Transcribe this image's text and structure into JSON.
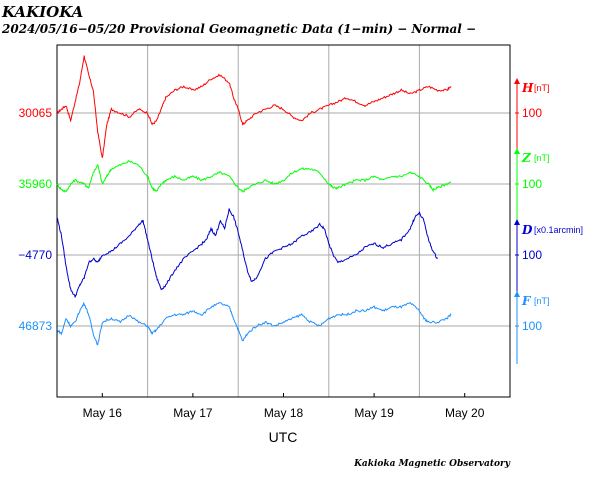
{
  "station": "KAKIOKA",
  "subtitle": "2024/05/16−05/20  Provisional Geomagnetic Data (1−min)  − Normal −",
  "credit": "Kakioka Magnetic Observatory",
  "chart_data": {
    "type": "line",
    "title": "KAKIOKA",
    "xlabel": "UTC",
    "x_ticks": [
      "May 16",
      "May 17",
      "May 18",
      "May 19",
      "May 20"
    ],
    "x_range_days": [
      0,
      5
    ],
    "grid": true,
    "series": [
      {
        "name": "H",
        "unit": "[nT]",
        "baseline": "30065",
        "scale": "100",
        "color": "#ff0000",
        "points": [
          [
            0,
            0
          ],
          [
            0.05,
            0.1
          ],
          [
            0.1,
            0.2
          ],
          [
            0.15,
            -0.2
          ],
          [
            0.2,
            0.3
          ],
          [
            0.25,
            0.8
          ],
          [
            0.3,
            1.5
          ],
          [
            0.35,
            1.0
          ],
          [
            0.4,
            0.6
          ],
          [
            0.45,
            -0.5
          ],
          [
            0.5,
            -1.2
          ],
          [
            0.55,
            -0.3
          ],
          [
            0.6,
            0.1
          ],
          [
            0.7,
            0.0
          ],
          [
            0.8,
            -0.1
          ],
          [
            0.9,
            0.1
          ],
          [
            1.0,
            0.0
          ],
          [
            1.05,
            -0.3
          ],
          [
            1.1,
            -0.2
          ],
          [
            1.15,
            0.1
          ],
          [
            1.2,
            0.4
          ],
          [
            1.3,
            0.6
          ],
          [
            1.4,
            0.7
          ],
          [
            1.5,
            0.6
          ],
          [
            1.6,
            0.7
          ],
          [
            1.7,
            0.9
          ],
          [
            1.8,
            1.0
          ],
          [
            1.9,
            0.8
          ],
          [
            1.95,
            0.4
          ],
          [
            2.0,
            0.1
          ],
          [
            2.05,
            -0.3
          ],
          [
            2.1,
            -0.2
          ],
          [
            2.2,
            0.0
          ],
          [
            2.3,
            0.1
          ],
          [
            2.4,
            0.2
          ],
          [
            2.5,
            0.1
          ],
          [
            2.6,
            -0.1
          ],
          [
            2.7,
            -0.2
          ],
          [
            2.8,
            0.0
          ],
          [
            2.9,
            0.1
          ],
          [
            3.0,
            0.2
          ],
          [
            3.1,
            0.3
          ],
          [
            3.2,
            0.4
          ],
          [
            3.3,
            0.3
          ],
          [
            3.4,
            0.2
          ],
          [
            3.5,
            0.3
          ],
          [
            3.6,
            0.4
          ],
          [
            3.7,
            0.5
          ],
          [
            3.8,
            0.6
          ],
          [
            3.9,
            0.5
          ],
          [
            4.0,
            0.6
          ],
          [
            4.1,
            0.7
          ],
          [
            4.2,
            0.6
          ],
          [
            4.3,
            0.6
          ],
          [
            4.35,
            0.7
          ]
        ]
      },
      {
        "name": "Z",
        "unit": "[nT]",
        "baseline": "35960",
        "scale": "100",
        "color": "#00ff00",
        "points": [
          [
            0,
            0
          ],
          [
            0.05,
            -0.15
          ],
          [
            0.1,
            -0.2
          ],
          [
            0.15,
            0.0
          ],
          [
            0.2,
            0.1
          ],
          [
            0.3,
            0.0
          ],
          [
            0.35,
            -0.1
          ],
          [
            0.4,
            0.3
          ],
          [
            0.45,
            0.5
          ],
          [
            0.5,
            0.0
          ],
          [
            0.55,
            0.2
          ],
          [
            0.6,
            0.4
          ],
          [
            0.7,
            0.5
          ],
          [
            0.8,
            0.6
          ],
          [
            0.9,
            0.5
          ],
          [
            1.0,
            0.2
          ],
          [
            1.05,
            -0.1
          ],
          [
            1.1,
            -0.2
          ],
          [
            1.15,
            0.0
          ],
          [
            1.2,
            0.1
          ],
          [
            1.3,
            0.2
          ],
          [
            1.4,
            0.1
          ],
          [
            1.5,
            0.2
          ],
          [
            1.6,
            0.1
          ],
          [
            1.7,
            0.2
          ],
          [
            1.8,
            0.3
          ],
          [
            1.9,
            0.2
          ],
          [
            2.0,
            -0.1
          ],
          [
            2.05,
            -0.2
          ],
          [
            2.1,
            -0.1
          ],
          [
            2.2,
            0.0
          ],
          [
            2.3,
            0.1
          ],
          [
            2.4,
            0.0
          ],
          [
            2.5,
            0.1
          ],
          [
            2.6,
            0.3
          ],
          [
            2.7,
            0.4
          ],
          [
            2.8,
            0.4
          ],
          [
            2.9,
            0.3
          ],
          [
            3.0,
            0.0
          ],
          [
            3.05,
            -0.1
          ],
          [
            3.1,
            -0.1
          ],
          [
            3.2,
            0.0
          ],
          [
            3.3,
            0.1
          ],
          [
            3.4,
            0.1
          ],
          [
            3.5,
            0.2
          ],
          [
            3.6,
            0.1
          ],
          [
            3.7,
            0.2
          ],
          [
            3.8,
            0.2
          ],
          [
            3.9,
            0.3
          ],
          [
            4.0,
            0.2
          ],
          [
            4.1,
            0.0
          ],
          [
            4.15,
            -0.15
          ],
          [
            4.2,
            -0.1
          ],
          [
            4.3,
            0.0
          ],
          [
            4.35,
            0.05
          ]
        ]
      },
      {
        "name": "D",
        "unit": "[x0.1arcmin]",
        "baseline": "−4770",
        "scale": "100",
        "color": "#0000cc",
        "points": [
          [
            0,
            1.0
          ],
          [
            0.05,
            0.5
          ],
          [
            0.1,
            -0.3
          ],
          [
            0.15,
            -0.9
          ],
          [
            0.2,
            -1.1
          ],
          [
            0.25,
            -0.8
          ],
          [
            0.3,
            -0.6
          ],
          [
            0.35,
            -0.2
          ],
          [
            0.4,
            -0.1
          ],
          [
            0.45,
            -0.2
          ],
          [
            0.5,
            0.0
          ],
          [
            0.6,
            0.1
          ],
          [
            0.7,
            0.3
          ],
          [
            0.8,
            0.5
          ],
          [
            0.9,
            0.8
          ],
          [
            0.95,
            0.9
          ],
          [
            1.0,
            0.4
          ],
          [
            1.05,
            -0.1
          ],
          [
            1.1,
            -0.6
          ],
          [
            1.15,
            -0.9
          ],
          [
            1.2,
            -0.8
          ],
          [
            1.3,
            -0.4
          ],
          [
            1.4,
            -0.1
          ],
          [
            1.5,
            0.1
          ],
          [
            1.6,
            0.3
          ],
          [
            1.65,
            0.4
          ],
          [
            1.7,
            0.7
          ],
          [
            1.75,
            0.5
          ],
          [
            1.8,
            0.9
          ],
          [
            1.85,
            0.7
          ],
          [
            1.9,
            1.2
          ],
          [
            1.95,
            1.0
          ],
          [
            2.0,
            0.6
          ],
          [
            2.05,
            0.1
          ],
          [
            2.1,
            -0.4
          ],
          [
            2.15,
            -0.7
          ],
          [
            2.2,
            -0.6
          ],
          [
            2.3,
            -0.1
          ],
          [
            2.4,
            0.1
          ],
          [
            2.5,
            0.2
          ],
          [
            2.6,
            0.3
          ],
          [
            2.7,
            0.5
          ],
          [
            2.8,
            0.6
          ],
          [
            2.9,
            0.8
          ],
          [
            2.95,
            0.7
          ],
          [
            3.0,
            0.3
          ],
          [
            3.05,
            0.0
          ],
          [
            3.1,
            -0.2
          ],
          [
            3.2,
            -0.1
          ],
          [
            3.3,
            0.0
          ],
          [
            3.4,
            0.2
          ],
          [
            3.5,
            0.3
          ],
          [
            3.6,
            0.2
          ],
          [
            3.7,
            0.3
          ],
          [
            3.8,
            0.4
          ],
          [
            3.9,
            0.7
          ],
          [
            3.95,
            1.0
          ],
          [
            4.0,
            1.1
          ],
          [
            4.05,
            0.9
          ],
          [
            4.1,
            0.4
          ],
          [
            4.15,
            0.1
          ],
          [
            4.2,
            -0.1
          ]
        ]
      },
      {
        "name": "F",
        "unit": "[nT]",
        "baseline": "46873",
        "scale": "100",
        "color": "#1e90ff",
        "points": [
          [
            0,
            -0.1
          ],
          [
            0.05,
            -0.2
          ],
          [
            0.1,
            0.2
          ],
          [
            0.15,
            0.0
          ],
          [
            0.2,
            0.1
          ],
          [
            0.25,
            0.4
          ],
          [
            0.3,
            0.6
          ],
          [
            0.35,
            0.3
          ],
          [
            0.4,
            -0.2
          ],
          [
            0.45,
            -0.5
          ],
          [
            0.5,
            0.1
          ],
          [
            0.6,
            0.2
          ],
          [
            0.7,
            0.1
          ],
          [
            0.8,
            0.3
          ],
          [
            0.9,
            0.1
          ],
          [
            1.0,
            0.0
          ],
          [
            1.05,
            -0.2
          ],
          [
            1.1,
            -0.1
          ],
          [
            1.2,
            0.2
          ],
          [
            1.3,
            0.3
          ],
          [
            1.4,
            0.3
          ],
          [
            1.5,
            0.4
          ],
          [
            1.6,
            0.3
          ],
          [
            1.7,
            0.5
          ],
          [
            1.8,
            0.6
          ],
          [
            1.9,
            0.5
          ],
          [
            1.95,
            0.2
          ],
          [
            2.0,
            -0.1
          ],
          [
            2.05,
            -0.4
          ],
          [
            2.1,
            -0.2
          ],
          [
            2.2,
            0.0
          ],
          [
            2.3,
            0.1
          ],
          [
            2.4,
            0.0
          ],
          [
            2.5,
            0.1
          ],
          [
            2.6,
            0.2
          ],
          [
            2.7,
            0.3
          ],
          [
            2.8,
            0.1
          ],
          [
            2.9,
            0.0
          ],
          [
            3.0,
            0.2
          ],
          [
            3.1,
            0.3
          ],
          [
            3.2,
            0.3
          ],
          [
            3.3,
            0.4
          ],
          [
            3.4,
            0.4
          ],
          [
            3.5,
            0.5
          ],
          [
            3.6,
            0.4
          ],
          [
            3.7,
            0.5
          ],
          [
            3.8,
            0.5
          ],
          [
            3.9,
            0.6
          ],
          [
            4.0,
            0.4
          ],
          [
            4.05,
            0.2
          ],
          [
            4.1,
            0.1
          ],
          [
            4.2,
            0.1
          ],
          [
            4.3,
            0.2
          ],
          [
            4.35,
            0.3
          ]
        ]
      }
    ]
  }
}
